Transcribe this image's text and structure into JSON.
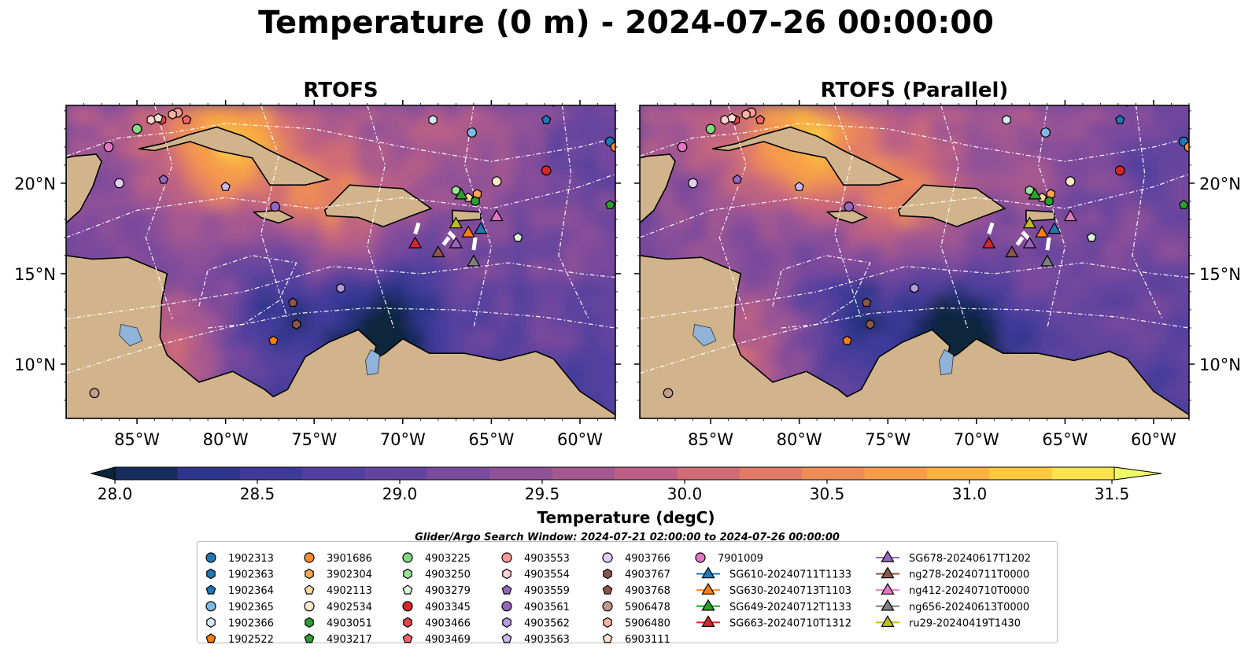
{
  "figure": {
    "title": "Temperature (0 m) - 2024-07-26 00:00:00",
    "panels": [
      {
        "title": "RTOFS"
      },
      {
        "title": "RTOFS (Parallel)"
      }
    ],
    "colorbar": {
      "label": "Temperature (degC)",
      "min": 28.0,
      "max": 31.5,
      "ticks": [
        "28.0",
        "28.5",
        "29.0",
        "29.5",
        "30.0",
        "30.5",
        "31.0",
        "31.5"
      ],
      "colors": [
        "#08253a",
        "#172c5e",
        "#2c3588",
        "#3f3a9a",
        "#513f9e",
        "#64449e",
        "#7a4a9c",
        "#8f5198",
        "#a5588f",
        "#bb6084",
        "#cf6c75",
        "#e07c66",
        "#ed8c57",
        "#f69d4a",
        "#fab241",
        "#fbc93f",
        "#fbe24e",
        "#eefb66"
      ]
    },
    "legend": {
      "title": "Glider/Argo Search Window: 2024-07-21 02:00:00 to 2024-07-26 00:00:00",
      "columns": [
        [
          {
            "label": "1902313",
            "marker": "circle",
            "color": "#1f77b4"
          },
          {
            "label": "1902363",
            "marker": "hexagon",
            "color": "#1f77b4"
          },
          {
            "label": "1902364",
            "marker": "pentagon",
            "color": "#1f77b4"
          },
          {
            "label": "1902365",
            "marker": "circle",
            "color": "#7fb9e6"
          },
          {
            "label": "1902366",
            "marker": "hexagon",
            "color": "#d4ecfa"
          },
          {
            "label": "1902522",
            "marker": "pentagon",
            "color": "#ff7f0e"
          }
        ],
        [
          {
            "label": "3901686",
            "marker": "circle",
            "color": "#ff8c2a"
          },
          {
            "label": "3902304",
            "marker": "hexagon",
            "color": "#ffa54f"
          },
          {
            "label": "4902113",
            "marker": "pentagon",
            "color": "#ffd9a0"
          },
          {
            "label": "4902534",
            "marker": "circle",
            "color": "#ffe6cc"
          },
          {
            "label": "4903051",
            "marker": "hexagon",
            "color": "#2ca02c"
          },
          {
            "label": "4903217",
            "marker": "pentagon",
            "color": "#2ca02c"
          }
        ],
        [
          {
            "label": "4903225",
            "marker": "circle",
            "color": "#7fd97f"
          },
          {
            "label": "4903250",
            "marker": "hexagon",
            "color": "#98e498"
          },
          {
            "label": "4903279",
            "marker": "pentagon",
            "color": "#ddf7dd"
          },
          {
            "label": "4903345",
            "marker": "circle",
            "color": "#d62728"
          },
          {
            "label": "4903466",
            "marker": "hexagon",
            "color": "#e0474a"
          },
          {
            "label": "4903469",
            "marker": "pentagon",
            "color": "#f06666"
          }
        ],
        [
          {
            "label": "4903553",
            "marker": "circle",
            "color": "#ff9896"
          },
          {
            "label": "4903554",
            "marker": "hexagon",
            "color": "#ffd2d1"
          },
          {
            "label": "4903559",
            "marker": "pentagon",
            "color": "#9467bd"
          },
          {
            "label": "4903561",
            "marker": "circle",
            "color": "#9467bd"
          },
          {
            "label": "4903562",
            "marker": "hexagon",
            "color": "#b59adf"
          },
          {
            "label": "4903563",
            "marker": "pentagon",
            "color": "#cdb8ee"
          }
        ],
        [
          {
            "label": "4903766",
            "marker": "circle",
            "color": "#e3cdf5"
          },
          {
            "label": "4903767",
            "marker": "hexagon",
            "color": "#8c564b"
          },
          {
            "label": "4903768",
            "marker": "pentagon",
            "color": "#8c564b"
          },
          {
            "label": "5906478",
            "marker": "circle",
            "color": "#c49a8c"
          },
          {
            "label": "5906480",
            "marker": "hexagon",
            "color": "#f4b4a4"
          },
          {
            "label": "6903111",
            "marker": "pentagon",
            "color": "#fde0d4"
          }
        ],
        [
          {
            "label": "7901009",
            "marker": "circle",
            "color": "#e377c2"
          },
          {
            "label": "SG610-20240711T1133",
            "marker": "triangle",
            "color": "#1f77b4"
          },
          {
            "label": "SG630-20240713T1103",
            "marker": "triangle",
            "color": "#ff7f0e"
          },
          {
            "label": "SG649-20240712T1133",
            "marker": "triangle",
            "color": "#2ca02c"
          },
          {
            "label": "SG663-20240710T1312",
            "marker": "triangle",
            "color": "#d62728"
          }
        ],
        [
          {
            "label": "SG678-20240617T1202",
            "marker": "triangle",
            "color": "#9467bd"
          },
          {
            "label": "ng278-20240711T0000",
            "marker": "triangle",
            "color": "#8c564b"
          },
          {
            "label": "ng412-20240710T0000",
            "marker": "triangle",
            "color": "#e377c2"
          },
          {
            "label": "ng656-20240613T0000",
            "marker": "triangle",
            "color": "#7f7f7f"
          },
          {
            "label": "ru29-20240419T1430",
            "marker": "triangle",
            "color": "#bcbd22"
          }
        ]
      ]
    }
  },
  "chart_data": {
    "type": "heatmap",
    "title": "Temperature (0 m) - 2024-07-26 00:00:00",
    "panels": [
      "RTOFS",
      "RTOFS (Parallel)"
    ],
    "x_ticks": [
      "85°W",
      "80°W",
      "75°W",
      "70°W",
      "65°W",
      "60°W"
    ],
    "y_ticks": [
      "20°N",
      "15°N",
      "10°N"
    ],
    "xlim": [
      -89,
      -58
    ],
    "ylim": [
      7,
      24.3
    ],
    "colorbar": {
      "label": "Temperature (degC)",
      "range": [
        28.0,
        31.5
      ]
    },
    "land_color": "#d2b48c",
    "platforms": [
      {
        "id": "1902313",
        "lon": -58.3,
        "lat": 22.3
      },
      {
        "id": "1902363",
        "lon": -61.5,
        "lat": 24.5
      },
      {
        "id": "1902364",
        "lon": -61.9,
        "lat": 23.5
      },
      {
        "id": "1902365",
        "lon": -66.1,
        "lat": 22.8
      },
      {
        "id": "1902366",
        "lon": -68.3,
        "lat": 23.5
      },
      {
        "id": "1902522",
        "lon": -77.3,
        "lat": 11.3
      },
      {
        "id": "3901686",
        "lon": -58.0,
        "lat": 22.0
      },
      {
        "id": "3902304",
        "lon": -65.8,
        "lat": 19.4
      },
      {
        "id": "4902113",
        "lon": -66.3,
        "lat": 19.2
      },
      {
        "id": "4902534",
        "lon": -64.7,
        "lat": 20.1
      },
      {
        "id": "4903051",
        "lon": -65.9,
        "lat": 19.0
      },
      {
        "id": "4903217",
        "lon": -58.3,
        "lat": 18.8
      },
      {
        "id": "4903225",
        "lon": -85.0,
        "lat": 23.0
      },
      {
        "id": "4903250",
        "lon": -67.0,
        "lat": 19.6
      },
      {
        "id": "4903279",
        "lon": -63.5,
        "lat": 17.0
      },
      {
        "id": "4903345",
        "lon": -61.9,
        "lat": 20.7
      },
      {
        "id": "4903466",
        "lon": -83.6,
        "lat": 23.5
      },
      {
        "id": "4903469",
        "lon": -82.2,
        "lat": 23.5
      },
      {
        "id": "4903553",
        "lon": -82.7,
        "lat": 23.9
      },
      {
        "id": "4903554",
        "lon": -84.2,
        "lat": 23.5
      },
      {
        "id": "4903559",
        "lon": -83.5,
        "lat": 20.2
      },
      {
        "id": "4903561",
        "lon": -77.2,
        "lat": 18.7
      },
      {
        "id": "4903562",
        "lon": -73.5,
        "lat": 14.2
      },
      {
        "id": "4903563",
        "lon": -80.0,
        "lat": 19.8
      },
      {
        "id": "4903766",
        "lon": -86.0,
        "lat": 20.0
      },
      {
        "id": "4903767",
        "lon": -76.0,
        "lat": 12.2
      },
      {
        "id": "4903768",
        "lon": -76.2,
        "lat": 13.4
      },
      {
        "id": "5906478",
        "lon": -87.4,
        "lat": 8.4
      },
      {
        "id": "5906480",
        "lon": -83.0,
        "lat": 23.8
      },
      {
        "id": "6903111",
        "lon": -83.8,
        "lat": 23.6
      },
      {
        "id": "7901009",
        "lon": -86.6,
        "lat": 22.0
      },
      {
        "id": "SG610-20240711T1133",
        "lon": -65.6,
        "lat": 17.5
      },
      {
        "id": "SG630-20240713T1103",
        "lon": -66.3,
        "lat": 17.3
      },
      {
        "id": "SG649-20240712T1133",
        "lon": -66.7,
        "lat": 19.4
      },
      {
        "id": "SG663-20240710T1312",
        "lon": -69.3,
        "lat": 16.7
      },
      {
        "id": "SG678-20240617T1202",
        "lon": -67.0,
        "lat": 16.7
      },
      {
        "id": "ng278-20240711T0000",
        "lon": -68.0,
        "lat": 16.2
      },
      {
        "id": "ng412-20240710T0000",
        "lon": -64.7,
        "lat": 18.2
      },
      {
        "id": "ng656-20240613T0000",
        "lon": -66.0,
        "lat": 15.7
      },
      {
        "id": "ru29-20240419T1430",
        "lon": -67.0,
        "lat": 17.8
      }
    ]
  }
}
